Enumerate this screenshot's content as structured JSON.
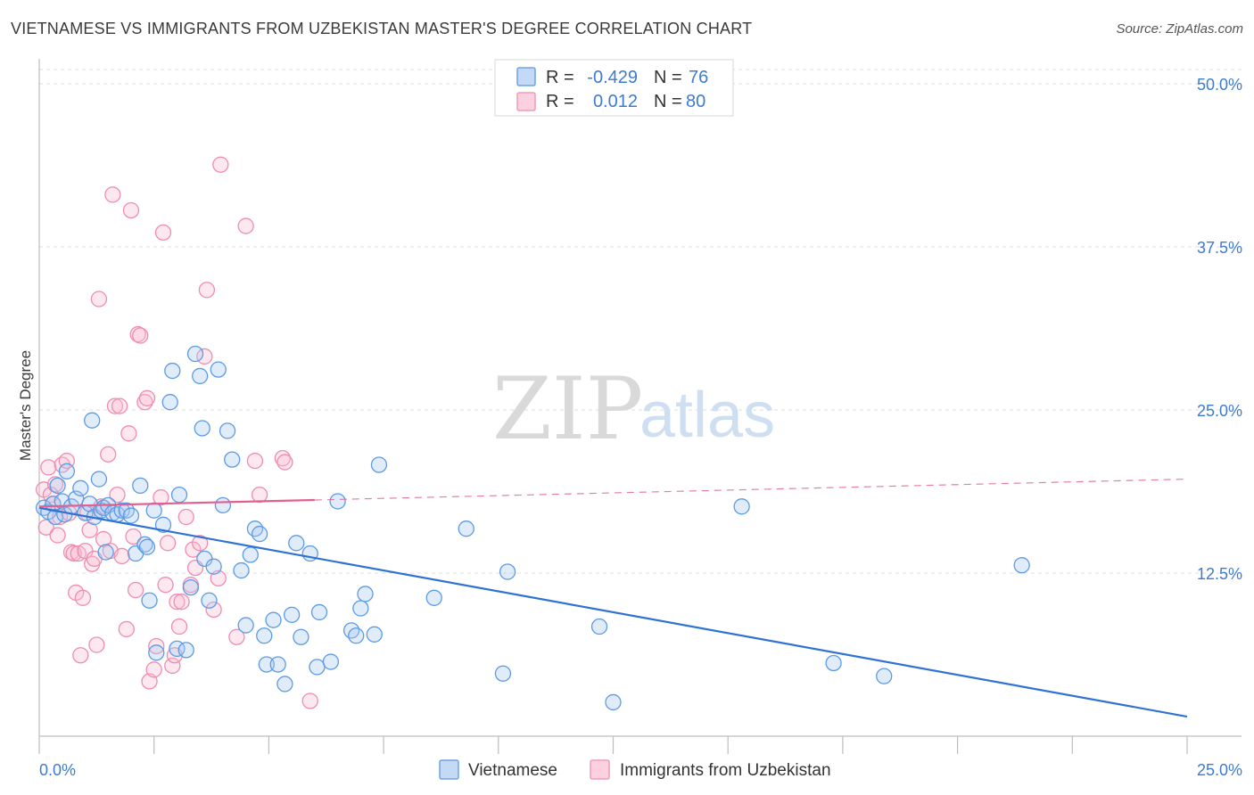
{
  "header": {
    "title": "VIETNAMESE VS IMMIGRANTS FROM UZBEKISTAN MASTER'S DEGREE CORRELATION CHART",
    "source": "Source: ZipAtlas.com"
  },
  "watermark": {
    "zip": "ZIP",
    "atlas": "atlas"
  },
  "legend": {
    "rows": [
      {
        "r_label": "R =",
        "r_value": "-0.429",
        "n_label": "N =",
        "n_value": "76"
      },
      {
        "r_label": "R =",
        "r_value": "0.012",
        "n_label": "N =",
        "n_value": "80"
      }
    ]
  },
  "chart_data": {
    "type": "scatter",
    "title": "VIETNAMESE VS IMMIGRANTS FROM UZBEKISTAN MASTER'S DEGREE CORRELATION CHART",
    "xlabel": "",
    "ylabel": "Master's Degree",
    "xlim": [
      0,
      25
    ],
    "ylim": [
      0,
      51.5
    ],
    "x_tick_labels": [
      "0.0%",
      "25.0%"
    ],
    "y_ticks": [
      12.5,
      25.0,
      37.5,
      50.0
    ],
    "y_tick_labels": [
      "12.5%",
      "25.0%",
      "37.5%",
      "50.0%"
    ],
    "grid": true,
    "legend_position": "top-center",
    "colors": {
      "vietnamese": "#5b9be6",
      "uzbekistan": "#f08cb0",
      "line_blue": "#2f72d4",
      "line_pink": "#e0608f"
    },
    "series": [
      {
        "name": "Vietnamese",
        "r": -0.429,
        "n": 76,
        "trend": {
          "x": [
            0,
            25
          ],
          "y": [
            17.5,
            1.5
          ]
        },
        "points": [
          [
            0.1,
            17.5
          ],
          [
            0.2,
            17.2
          ],
          [
            0.3,
            17.8
          ],
          [
            0.35,
            16.8
          ],
          [
            0.4,
            19.2
          ],
          [
            0.5,
            18.0
          ],
          [
            0.55,
            17.0
          ],
          [
            0.6,
            20.3
          ],
          [
            0.7,
            17.6
          ],
          [
            0.8,
            18.2
          ],
          [
            0.9,
            19.0
          ],
          [
            1.0,
            17.1
          ],
          [
            1.1,
            17.8
          ],
          [
            1.15,
            24.2
          ],
          [
            1.2,
            16.8
          ],
          [
            1.3,
            19.7
          ],
          [
            1.35,
            17.3
          ],
          [
            1.4,
            17.5
          ],
          [
            1.45,
            14.1
          ],
          [
            1.5,
            17.7
          ],
          [
            1.6,
            17.1
          ],
          [
            1.7,
            17.0
          ],
          [
            1.8,
            17.3
          ],
          [
            1.9,
            17.3
          ],
          [
            2.0,
            16.9
          ],
          [
            2.1,
            14.0
          ],
          [
            2.2,
            19.2
          ],
          [
            2.3,
            14.7
          ],
          [
            2.35,
            14.5
          ],
          [
            2.4,
            10.4
          ],
          [
            2.5,
            17.3
          ],
          [
            2.55,
            6.4
          ],
          [
            2.7,
            16.2
          ],
          [
            2.85,
            25.6
          ],
          [
            2.9,
            28.0
          ],
          [
            3.0,
            6.7
          ],
          [
            3.05,
            18.5
          ],
          [
            3.2,
            6.6
          ],
          [
            3.3,
            11.4
          ],
          [
            3.4,
            29.3
          ],
          [
            3.5,
            27.6
          ],
          [
            3.55,
            23.6
          ],
          [
            3.6,
            13.6
          ],
          [
            3.7,
            10.4
          ],
          [
            3.8,
            13.0
          ],
          [
            3.9,
            28.1
          ],
          [
            4.0,
            17.7
          ],
          [
            4.1,
            23.4
          ],
          [
            4.2,
            21.2
          ],
          [
            4.4,
            12.7
          ],
          [
            4.5,
            8.5
          ],
          [
            4.6,
            13.9
          ],
          [
            4.7,
            15.9
          ],
          [
            4.8,
            15.5
          ],
          [
            4.9,
            7.7
          ],
          [
            4.95,
            5.5
          ],
          [
            5.1,
            8.9
          ],
          [
            5.2,
            5.5
          ],
          [
            5.35,
            4.0
          ],
          [
            5.5,
            9.3
          ],
          [
            5.6,
            14.8
          ],
          [
            5.7,
            7.6
          ],
          [
            5.9,
            14.0
          ],
          [
            6.05,
            5.3
          ],
          [
            6.1,
            9.5
          ],
          [
            6.35,
            5.7
          ],
          [
            6.5,
            18.0
          ],
          [
            6.8,
            8.1
          ],
          [
            6.9,
            7.7
          ],
          [
            7.0,
            9.8
          ],
          [
            7.1,
            10.9
          ],
          [
            7.3,
            7.8
          ],
          [
            7.4,
            20.8
          ],
          [
            8.6,
            10.6
          ],
          [
            9.3,
            15.9
          ],
          [
            10.1,
            4.8
          ],
          [
            10.2,
            12.6
          ],
          [
            12.2,
            8.4
          ],
          [
            12.5,
            2.6
          ],
          [
            15.3,
            17.6
          ],
          [
            17.3,
            5.6
          ],
          [
            18.4,
            4.6
          ],
          [
            21.4,
            13.1
          ]
        ]
      },
      {
        "name": "Immigrants from Uzbekistan",
        "r": 0.012,
        "n": 80,
        "trend": {
          "x": [
            0,
            6
          ],
          "y": [
            17.6,
            18.1
          ]
        },
        "trend_extended": {
          "x": [
            6,
            25
          ],
          "y": [
            18.1,
            19.7
          ]
        },
        "points": [
          [
            0.1,
            18.9
          ],
          [
            0.15,
            16.0
          ],
          [
            0.2,
            20.6
          ],
          [
            0.25,
            18.5
          ],
          [
            0.3,
            17.8
          ],
          [
            0.35,
            19.3
          ],
          [
            0.4,
            15.4
          ],
          [
            0.45,
            16.8
          ],
          [
            0.5,
            20.8
          ],
          [
            0.6,
            21.1
          ],
          [
            0.65,
            17.1
          ],
          [
            0.7,
            14.1
          ],
          [
            0.75,
            14.0
          ],
          [
            0.8,
            11.0
          ],
          [
            0.85,
            14.0
          ],
          [
            0.9,
            6.2
          ],
          [
            0.95,
            10.6
          ],
          [
            1.0,
            14.2
          ],
          [
            1.05,
            17.1
          ],
          [
            1.1,
            15.8
          ],
          [
            1.15,
            13.2
          ],
          [
            1.2,
            13.6
          ],
          [
            1.25,
            7.0
          ],
          [
            1.3,
            33.5
          ],
          [
            1.35,
            17.6
          ],
          [
            1.4,
            15.1
          ],
          [
            1.5,
            21.6
          ],
          [
            1.55,
            14.2
          ],
          [
            1.6,
            41.5
          ],
          [
            1.65,
            25.3
          ],
          [
            1.7,
            18.5
          ],
          [
            1.75,
            25.3
          ],
          [
            1.8,
            13.8
          ],
          [
            1.9,
            8.2
          ],
          [
            1.95,
            23.2
          ],
          [
            2.0,
            40.3
          ],
          [
            2.05,
            15.3
          ],
          [
            2.1,
            11.2
          ],
          [
            2.15,
            30.8
          ],
          [
            2.2,
            30.7
          ],
          [
            2.3,
            25.6
          ],
          [
            2.35,
            25.9
          ],
          [
            2.4,
            4.2
          ],
          [
            2.5,
            5.1
          ],
          [
            2.55,
            6.9
          ],
          [
            2.65,
            18.3
          ],
          [
            2.7,
            38.6
          ],
          [
            2.75,
            11.6
          ],
          [
            2.8,
            14.8
          ],
          [
            2.9,
            5.4
          ],
          [
            2.95,
            6.2
          ],
          [
            3.0,
            10.3
          ],
          [
            3.05,
            8.4
          ],
          [
            3.1,
            10.3
          ],
          [
            3.2,
            16.8
          ],
          [
            3.3,
            11.6
          ],
          [
            3.35,
            14.3
          ],
          [
            3.4,
            12.9
          ],
          [
            3.5,
            14.8
          ],
          [
            3.6,
            29.1
          ],
          [
            3.65,
            34.2
          ],
          [
            3.8,
            9.7
          ],
          [
            3.9,
            12.1
          ],
          [
            3.95,
            43.8
          ],
          [
            4.3,
            7.6
          ],
          [
            4.5,
            39.1
          ],
          [
            4.7,
            21.1
          ],
          [
            4.8,
            18.5
          ],
          [
            5.3,
            21.3
          ],
          [
            5.35,
            21.0
          ],
          [
            5.9,
            2.7
          ]
        ]
      }
    ]
  },
  "bottom_legend": {
    "items": [
      {
        "label": "Vietnamese"
      },
      {
        "label": "Immigrants from Uzbekistan"
      }
    ]
  }
}
